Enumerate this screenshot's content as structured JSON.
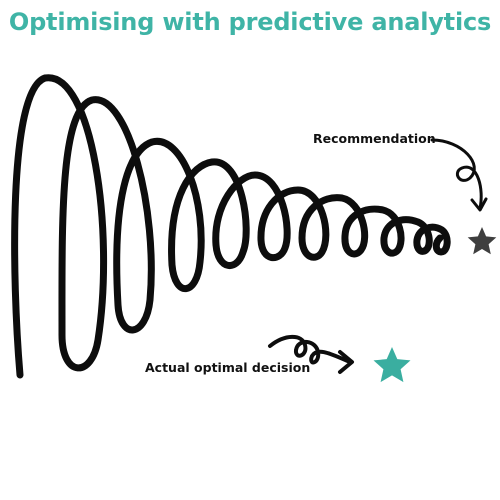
{
  "title": "Optimising with predictive analytics",
  "labels": {
    "recommendation": "Recommendation",
    "actual_optimal": "Actual optimal decision"
  },
  "colors": {
    "title": "#3fb4a6",
    "line": "#0d0d0d",
    "recommendation_star": "#3f3f3f",
    "optimal_star": "#3aaea0"
  },
  "icons": {
    "recommendation_star": "star-icon",
    "optimal_star": "star-icon"
  }
}
